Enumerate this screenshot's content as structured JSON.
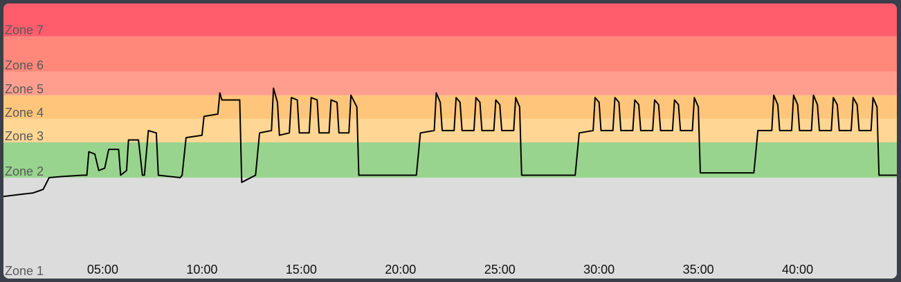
{
  "chart_data": {
    "type": "line",
    "title": "",
    "xlabel": "",
    "ylabel": "",
    "x_unit": "minutes",
    "xlim": [
      0,
      45
    ],
    "ylim": [
      0,
      8.4
    ],
    "grid": false,
    "zones": [
      {
        "label": "Zone 1",
        "from": 0,
        "to": 1.0,
        "color": "#dcdcdc"
      },
      {
        "label": "Zone 2",
        "from": 1.0,
        "to": 2.5,
        "color": "#98d48d"
      },
      {
        "label": "Zone 3",
        "from": 2.5,
        "to": 3.5,
        "color": "#ffd694"
      },
      {
        "label": "Zone 4",
        "from": 3.5,
        "to": 4.5,
        "color": "#ffc67b"
      },
      {
        "label": "Zone 5",
        "from": 4.5,
        "to": 5.5,
        "color": "#ff9e8f"
      },
      {
        "label": "Zone 6",
        "from": 5.5,
        "to": 7.0,
        "color": "#ff887b"
      },
      {
        "label": "Zone 7",
        "from": 7.0,
        "to": 8.4,
        "color": "#ff5d6c"
      }
    ],
    "x_ticks": [
      {
        "value": 5,
        "label": "05:00"
      },
      {
        "value": 10,
        "label": "10:00"
      },
      {
        "value": 15,
        "label": "15:00"
      },
      {
        "value": 20,
        "label": "20:00"
      },
      {
        "value": 25,
        "label": "25:00"
      },
      {
        "value": 30,
        "label": "30:00"
      },
      {
        "value": 35,
        "label": "35:00"
      },
      {
        "value": 40,
        "label": "40:00"
      }
    ],
    "series": [
      {
        "color": "#000000",
        "points": [
          [
            0.0,
            0.2
          ],
          [
            0.5,
            0.25
          ],
          [
            1.0,
            0.3
          ],
          [
            1.5,
            0.35
          ],
          [
            2.0,
            0.5
          ],
          [
            2.3,
            1.0
          ],
          [
            3.0,
            1.05
          ],
          [
            4.0,
            1.1
          ],
          [
            4.2,
            1.1
          ],
          [
            4.3,
            2.1
          ],
          [
            4.6,
            2.0
          ],
          [
            4.8,
            1.3
          ],
          [
            5.1,
            1.4
          ],
          [
            5.3,
            2.2
          ],
          [
            5.8,
            2.2
          ],
          [
            5.9,
            1.1
          ],
          [
            6.2,
            1.3
          ],
          [
            6.3,
            2.6
          ],
          [
            6.8,
            2.6
          ],
          [
            7.0,
            1.1
          ],
          [
            7.1,
            1.1
          ],
          [
            7.3,
            3.0
          ],
          [
            7.7,
            2.9
          ],
          [
            7.8,
            1.1
          ],
          [
            8.9,
            1.0
          ],
          [
            9.0,
            1.1
          ],
          [
            9.2,
            2.7
          ],
          [
            10.0,
            2.8
          ],
          [
            10.1,
            3.6
          ],
          [
            10.8,
            3.7
          ],
          [
            10.9,
            4.6
          ],
          [
            11.0,
            4.3
          ],
          [
            11.9,
            4.3
          ],
          [
            12.0,
            0.8
          ],
          [
            12.7,
            1.1
          ],
          [
            12.9,
            2.9
          ],
          [
            13.5,
            3.0
          ],
          [
            13.6,
            4.8
          ],
          [
            13.8,
            4.2
          ],
          [
            13.9,
            2.8
          ],
          [
            14.4,
            2.9
          ],
          [
            14.5,
            4.4
          ],
          [
            14.8,
            4.3
          ],
          [
            14.9,
            2.9
          ],
          [
            15.4,
            2.9
          ],
          [
            15.5,
            4.4
          ],
          [
            15.8,
            4.3
          ],
          [
            15.9,
            2.9
          ],
          [
            16.4,
            2.9
          ],
          [
            16.5,
            4.3
          ],
          [
            16.8,
            4.2
          ],
          [
            16.9,
            2.9
          ],
          [
            17.4,
            2.9
          ],
          [
            17.5,
            4.5
          ],
          [
            17.8,
            4.0
          ],
          [
            17.9,
            1.1
          ],
          [
            20.8,
            1.1
          ],
          [
            21.0,
            2.9
          ],
          [
            21.7,
            3.0
          ],
          [
            21.8,
            4.6
          ],
          [
            22.0,
            4.2
          ],
          [
            22.1,
            3.0
          ],
          [
            22.7,
            3.0
          ],
          [
            22.8,
            4.4
          ],
          [
            23.0,
            4.2
          ],
          [
            23.1,
            3.0
          ],
          [
            23.7,
            3.0
          ],
          [
            23.8,
            4.4
          ],
          [
            24.0,
            4.2
          ],
          [
            24.1,
            3.0
          ],
          [
            24.7,
            3.0
          ],
          [
            24.8,
            4.3
          ],
          [
            25.0,
            4.1
          ],
          [
            25.1,
            3.0
          ],
          [
            25.7,
            3.0
          ],
          [
            25.8,
            4.4
          ],
          [
            26.0,
            4.0
          ],
          [
            26.1,
            1.1
          ],
          [
            28.8,
            1.1
          ],
          [
            29.0,
            2.9
          ],
          [
            29.7,
            3.0
          ],
          [
            29.8,
            4.4
          ],
          [
            30.0,
            4.2
          ],
          [
            30.1,
            3.0
          ],
          [
            30.7,
            3.0
          ],
          [
            30.8,
            4.4
          ],
          [
            31.0,
            4.2
          ],
          [
            31.1,
            3.0
          ],
          [
            31.7,
            3.0
          ],
          [
            31.8,
            4.3
          ],
          [
            32.0,
            4.1
          ],
          [
            32.1,
            3.0
          ],
          [
            32.7,
            3.0
          ],
          [
            32.8,
            4.3
          ],
          [
            33.0,
            4.1
          ],
          [
            33.1,
            3.0
          ],
          [
            33.7,
            3.0
          ],
          [
            33.8,
            4.3
          ],
          [
            34.0,
            4.1
          ],
          [
            34.1,
            3.0
          ],
          [
            34.7,
            3.0
          ],
          [
            34.8,
            4.4
          ],
          [
            35.0,
            4.0
          ],
          [
            35.1,
            1.2
          ],
          [
            37.8,
            1.2
          ],
          [
            38.0,
            3.0
          ],
          [
            38.7,
            3.0
          ],
          [
            38.8,
            4.5
          ],
          [
            39.0,
            4.1
          ],
          [
            39.1,
            3.0
          ],
          [
            39.7,
            3.0
          ],
          [
            39.8,
            4.5
          ],
          [
            40.0,
            4.1
          ],
          [
            40.1,
            3.0
          ],
          [
            40.7,
            3.0
          ],
          [
            40.8,
            4.5
          ],
          [
            41.0,
            4.1
          ],
          [
            41.1,
            3.0
          ],
          [
            41.7,
            3.0
          ],
          [
            41.8,
            4.4
          ],
          [
            42.0,
            4.1
          ],
          [
            42.1,
            3.0
          ],
          [
            42.7,
            3.0
          ],
          [
            42.8,
            4.4
          ],
          [
            43.0,
            4.1
          ],
          [
            43.1,
            3.0
          ],
          [
            43.7,
            3.0
          ],
          [
            43.8,
            4.4
          ],
          [
            44.0,
            4.0
          ],
          [
            44.1,
            1.1
          ],
          [
            45.0,
            1.1
          ]
        ]
      }
    ]
  }
}
